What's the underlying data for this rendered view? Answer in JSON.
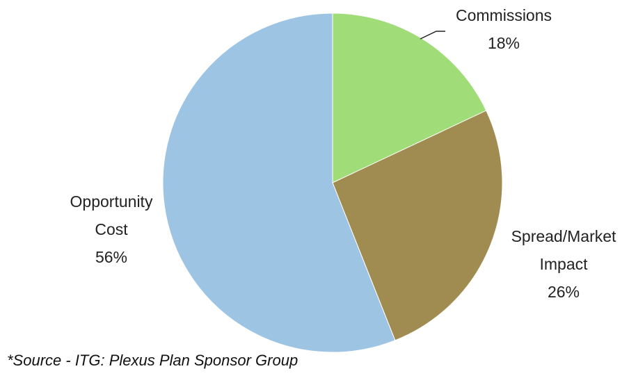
{
  "chart_data": {
    "type": "pie",
    "title": "",
    "slices": [
      {
        "label_lines": [
          "Commissions"
        ],
        "value": 18,
        "value_text": "18%",
        "color": "#a0dc78"
      },
      {
        "label_lines": [
          "Spread/Market",
          "Impact"
        ],
        "value": 26,
        "value_text": "26%",
        "color": "#a08c50"
      },
      {
        "label_lines": [
          "Opportunity",
          "Cost"
        ],
        "value": 56,
        "value_text": "56%",
        "color": "#9ec4e4"
      }
    ],
    "start": "12 o'clock",
    "direction": "clockwise",
    "legend": "none"
  },
  "footnote": "*Source - ITG: Plexus Plan Sponsor Group"
}
